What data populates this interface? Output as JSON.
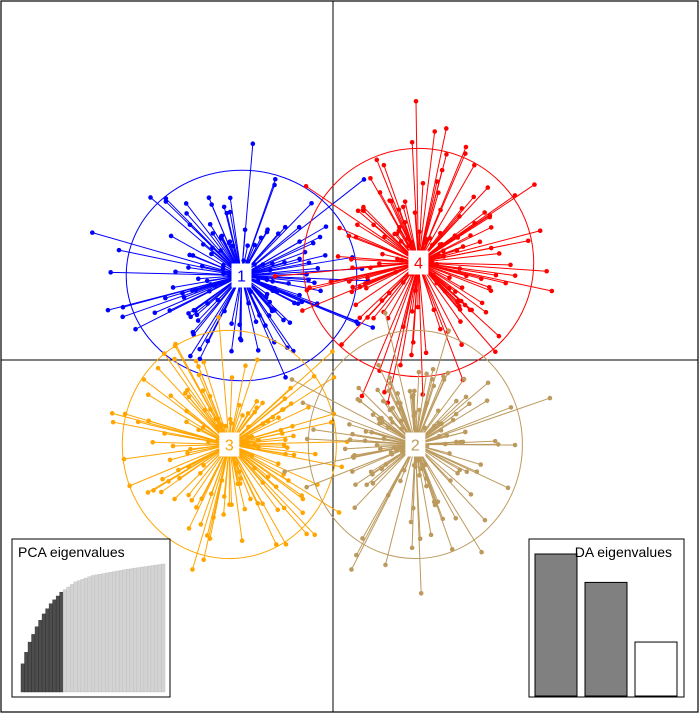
{
  "chart_data": {
    "type": "scatter",
    "title": "",
    "xlabel": "",
    "ylabel": "",
    "grid": false,
    "clusters": [
      {
        "label": "1",
        "color": "#0000ff",
        "center": [
          -3.0,
          2.6
        ],
        "spread": [
          2.8,
          2.4
        ],
        "n": 150,
        "seed": 11
      },
      {
        "label": "4",
        "color": "#ff0000",
        "center": [
          2.8,
          3.0
        ],
        "spread": [
          2.8,
          2.6
        ],
        "n": 160,
        "seed": 23
      },
      {
        "label": "3",
        "color": "#ffa500",
        "center": [
          -3.4,
          -2.6
        ],
        "spread": [
          2.6,
          2.6
        ],
        "n": 150,
        "seed": 37
      },
      {
        "label": "2",
        "color": "#bc9a5e",
        "center": [
          2.7,
          -2.6
        ],
        "spread": [
          2.6,
          2.6
        ],
        "n": 150,
        "seed": 53
      }
    ],
    "pca_eigenvalues": {
      "title": "PCA eigenvalues",
      "cumulative": [
        0.22,
        0.31,
        0.39,
        0.45,
        0.51,
        0.56,
        0.61,
        0.65,
        0.69,
        0.72,
        0.75,
        0.78,
        0.8,
        0.82,
        0.84,
        0.86,
        0.87,
        0.88,
        0.89,
        0.9,
        0.91,
        0.915,
        0.92,
        0.925,
        0.93,
        0.935,
        0.94,
        0.945,
        0.95,
        0.955,
        0.96,
        0.964,
        0.968,
        0.972,
        0.976,
        0.98,
        0.984,
        0.988,
        0.992,
        0.996,
        1.0
      ],
      "retained": 12,
      "retained_color": "#4d4d4d",
      "other_color": "#d3d3d3"
    },
    "da_eigenvalues": {
      "title": "DA eigenvalues",
      "values": [
        1.0,
        0.8,
        0.38
      ],
      "colors": [
        "#808080",
        "#808080",
        "#ffffff"
      ]
    }
  }
}
